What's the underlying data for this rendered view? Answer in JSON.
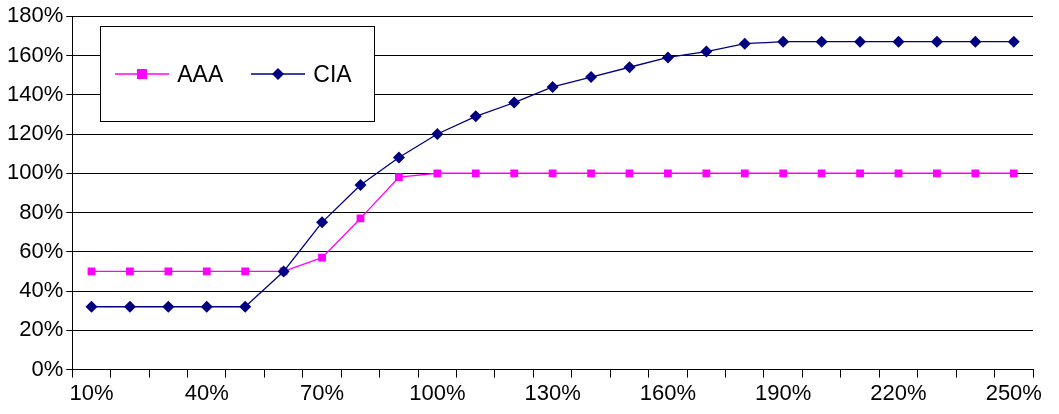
{
  "chart_data": {
    "type": "line",
    "categories": [
      "10%",
      null,
      null,
      "40%",
      null,
      null,
      "70%",
      null,
      null,
      "100%",
      null,
      null,
      "130%",
      null,
      null,
      "160%",
      null,
      null,
      "190%",
      null,
      null,
      "220%",
      null,
      null,
      "250%"
    ],
    "series": [
      {
        "name": "AAA",
        "color": "#ff00ff",
        "marker": "square",
        "values": [
          50,
          50,
          50,
          50,
          50,
          50,
          57,
          77,
          98,
          100,
          100,
          100,
          100,
          100,
          100,
          100,
          100,
          100,
          100,
          100,
          100,
          100,
          100,
          100,
          100
        ]
      },
      {
        "name": "CIA",
        "color": "#000080",
        "marker": "diamond",
        "values": [
          32,
          32,
          32,
          32,
          32,
          50,
          75,
          94,
          108,
          120,
          129,
          136,
          144,
          149,
          154,
          159,
          162,
          166,
          167,
          167,
          167,
          167,
          167,
          167,
          167
        ]
      }
    ],
    "ylim": [
      0,
      180
    ],
    "yticks": [
      {
        "value": 0,
        "label": "0%"
      },
      {
        "value": 20,
        "label": "20%"
      },
      {
        "value": 40,
        "label": "40%"
      },
      {
        "value": 60,
        "label": "60%"
      },
      {
        "value": 80,
        "label": "80%"
      },
      {
        "value": 100,
        "label": "100%"
      },
      {
        "value": 120,
        "label": "120%"
      },
      {
        "value": 140,
        "label": "140%"
      },
      {
        "value": 160,
        "label": "160%"
      },
      {
        "value": 180,
        "label": "180%"
      }
    ],
    "grid": "y",
    "legend": "top left",
    "line_style": "solid"
  }
}
